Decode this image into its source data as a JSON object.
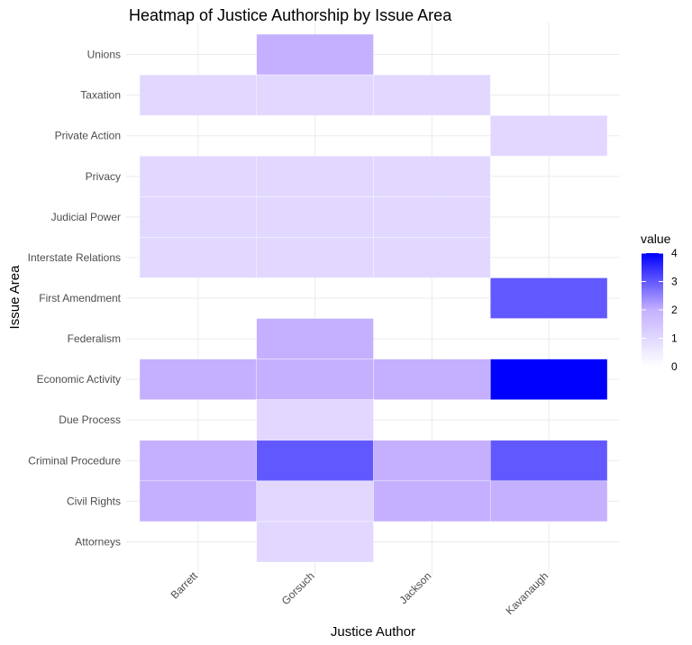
{
  "chart_data": {
    "type": "heatmap",
    "title": "Heatmap of Justice Authorship by Issue Area",
    "xlabel": "Justice Author",
    "ylabel": "Issue Area",
    "x_categories": [
      "Barrett",
      "Gorsuch",
      "Jackson",
      "Kavanaugh"
    ],
    "y_categories": [
      "Attorneys",
      "Civil Rights",
      "Criminal Procedure",
      "Due Process",
      "Economic Activity",
      "Federalism",
      "First Amendment",
      "Interstate Relations",
      "Judicial Power",
      "Privacy",
      "Private Action",
      "Taxation",
      "Unions"
    ],
    "cells": [
      {
        "x": "Gorsuch",
        "y": "Unions",
        "value": 2
      },
      {
        "x": "Barrett",
        "y": "Taxation",
        "value": 1
      },
      {
        "x": "Gorsuch",
        "y": "Taxation",
        "value": 1
      },
      {
        "x": "Jackson",
        "y": "Taxation",
        "value": 1
      },
      {
        "x": "Kavanaugh",
        "y": "Private Action",
        "value": 1
      },
      {
        "x": "Barrett",
        "y": "Privacy",
        "value": 1
      },
      {
        "x": "Gorsuch",
        "y": "Privacy",
        "value": 1
      },
      {
        "x": "Jackson",
        "y": "Privacy",
        "value": 1
      },
      {
        "x": "Barrett",
        "y": "Judicial Power",
        "value": 1
      },
      {
        "x": "Gorsuch",
        "y": "Judicial Power",
        "value": 1
      },
      {
        "x": "Jackson",
        "y": "Judicial Power",
        "value": 1
      },
      {
        "x": "Barrett",
        "y": "Interstate Relations",
        "value": 1
      },
      {
        "x": "Gorsuch",
        "y": "Interstate Relations",
        "value": 1
      },
      {
        "x": "Jackson",
        "y": "Interstate Relations",
        "value": 1
      },
      {
        "x": "Kavanaugh",
        "y": "First Amendment",
        "value": 3
      },
      {
        "x": "Gorsuch",
        "y": "Federalism",
        "value": 2
      },
      {
        "x": "Barrett",
        "y": "Economic Activity",
        "value": 2
      },
      {
        "x": "Gorsuch",
        "y": "Economic Activity",
        "value": 2
      },
      {
        "x": "Jackson",
        "y": "Economic Activity",
        "value": 2
      },
      {
        "x": "Kavanaugh",
        "y": "Economic Activity",
        "value": 4
      },
      {
        "x": "Gorsuch",
        "y": "Due Process",
        "value": 1
      },
      {
        "x": "Barrett",
        "y": "Criminal Procedure",
        "value": 2
      },
      {
        "x": "Gorsuch",
        "y": "Criminal Procedure",
        "value": 3
      },
      {
        "x": "Jackson",
        "y": "Criminal Procedure",
        "value": 2
      },
      {
        "x": "Kavanaugh",
        "y": "Criminal Procedure",
        "value": 3
      },
      {
        "x": "Barrett",
        "y": "Civil Rights",
        "value": 2
      },
      {
        "x": "Gorsuch",
        "y": "Civil Rights",
        "value": 1
      },
      {
        "x": "Jackson",
        "y": "Civil Rights",
        "value": 2
      },
      {
        "x": "Kavanaugh",
        "y": "Civil Rights",
        "value": 2
      },
      {
        "x": "Gorsuch",
        "y": "Attorneys",
        "value": 1
      }
    ],
    "legend": {
      "title": "value",
      "ticks": [
        0,
        1,
        2,
        3,
        4
      ],
      "low_color": "#ffffff",
      "high_color": "#0000ff",
      "placement": "right"
    },
    "value_range": [
      0,
      4
    ],
    "grid": true
  }
}
